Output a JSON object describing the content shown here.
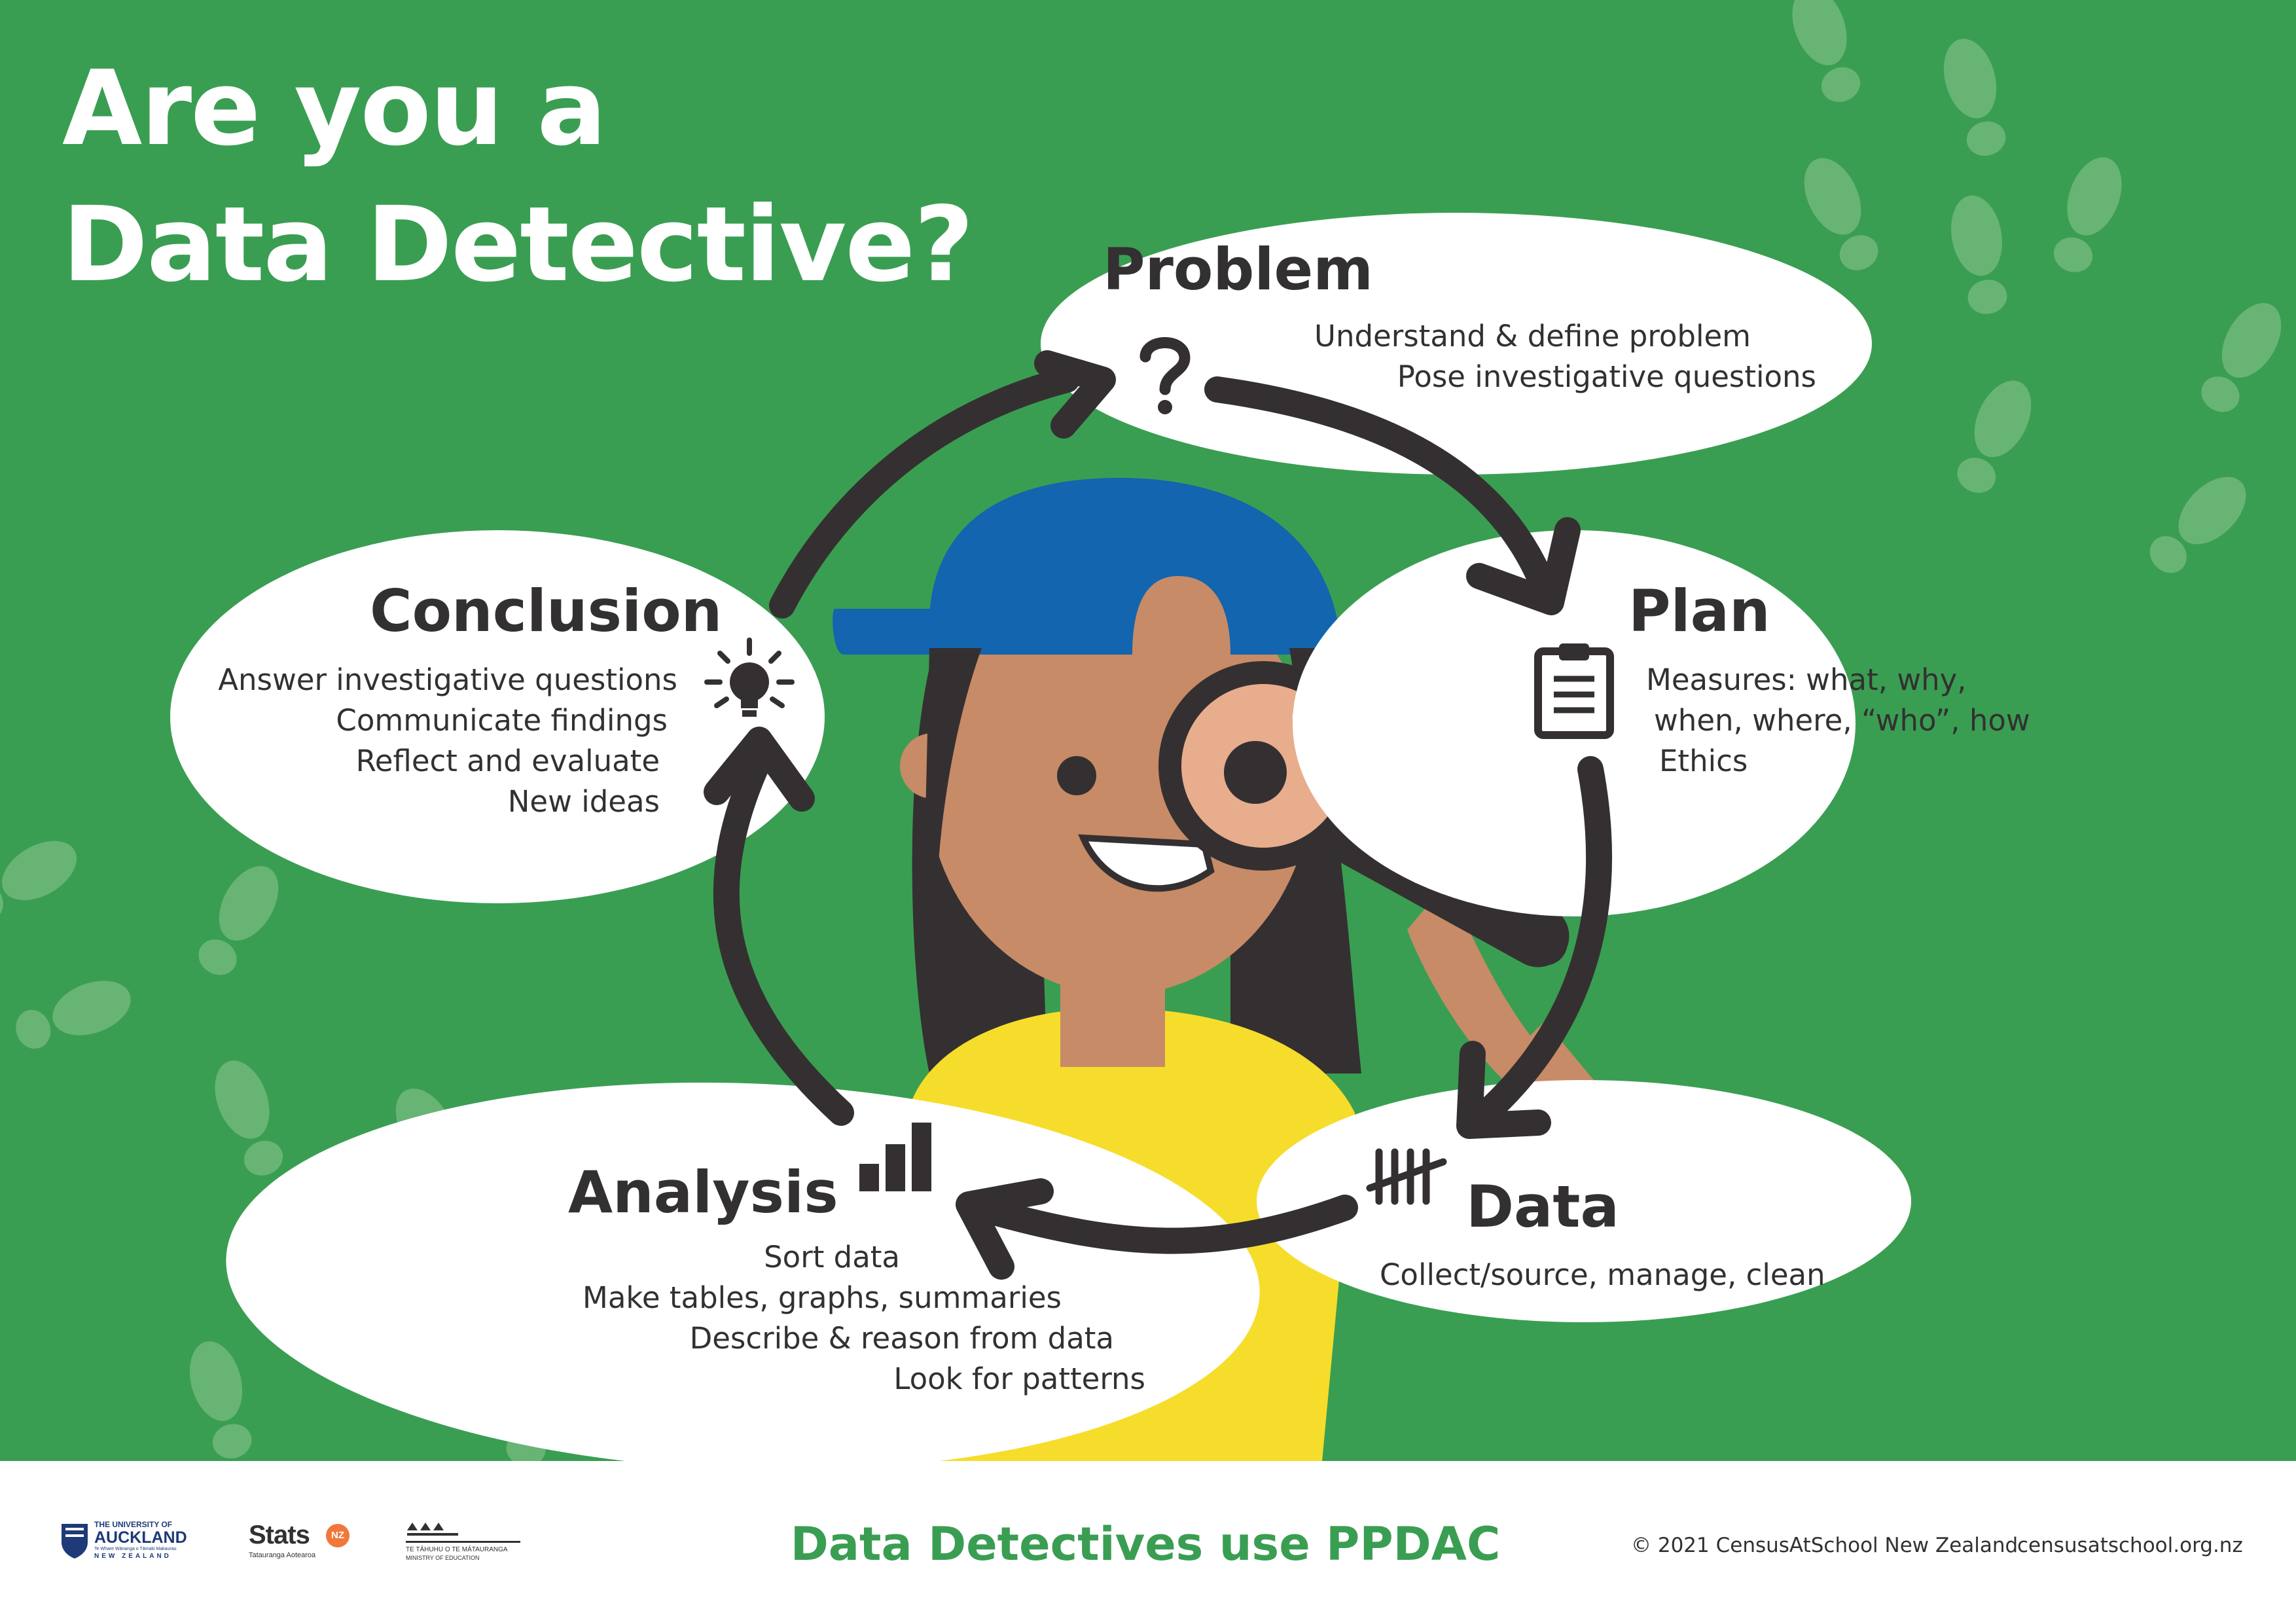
{
  "title": {
    "line1": "Are you a",
    "line2": "Data Detective?"
  },
  "stages": {
    "problem": {
      "heading": "Problem",
      "icon": "question-mark-icon",
      "lines": [
        "Understand & define problem",
        "Pose investigative questions"
      ]
    },
    "plan": {
      "heading": "Plan",
      "icon": "clipboard-icon",
      "lines": [
        "Measures: what, why,",
        "when, where, “who”, how",
        "Ethics"
      ]
    },
    "data": {
      "heading": "Data",
      "icon": "tally-marks-icon",
      "lines": [
        "Collect/source, manage, clean"
      ]
    },
    "analysis": {
      "heading": "Analysis",
      "icon": "bar-chart-icon",
      "lines": [
        "Sort data",
        "Make tables, graphs, summaries",
        "Describe & reason from data",
        "Look for patterns"
      ]
    },
    "conclusion": {
      "heading": "Conclusion",
      "icon": "lightbulb-icon",
      "lines": [
        "Answer investigative questions",
        "Communicate findings",
        "Reflect and evaluate",
        "New ideas"
      ]
    }
  },
  "footer": {
    "tagline": "Data Detectives use PPDAC",
    "copyright": "© 2021 CensusAtSchool New Zealand",
    "website": "censusatschool.org.nz",
    "logos": {
      "auckland": {
        "line1": "THE UNIVERSITY OF",
        "line2": "AUCKLAND",
        "line3": "Te Whare Wānanga o Tāmaki Makaurau",
        "line4": "NEW ZEALAND"
      },
      "stats": {
        "name": "Stats",
        "badge": "NZ",
        "sub": "Tatauranga Aotearoa"
      },
      "ministry": {
        "line1": "TE TĀHUHU O TE MĀTAURANGA",
        "line2": "MINISTRY OF EDUCATION"
      }
    }
  },
  "colors": {
    "background_green": "#3a9e52",
    "footprint_green": "#68b475",
    "bubble_white": "#ffffff",
    "dark_text": "#333031",
    "cap_blue": "#1265ae",
    "shirt_yellow": "#f6dd2b",
    "skin": "#c78b67",
    "hair": "#343031",
    "lens": "#e8ad8c",
    "tagline_green": "#3a9e52",
    "stats_orange": "#f0783c",
    "auckland_blue": "#1e3a78"
  }
}
